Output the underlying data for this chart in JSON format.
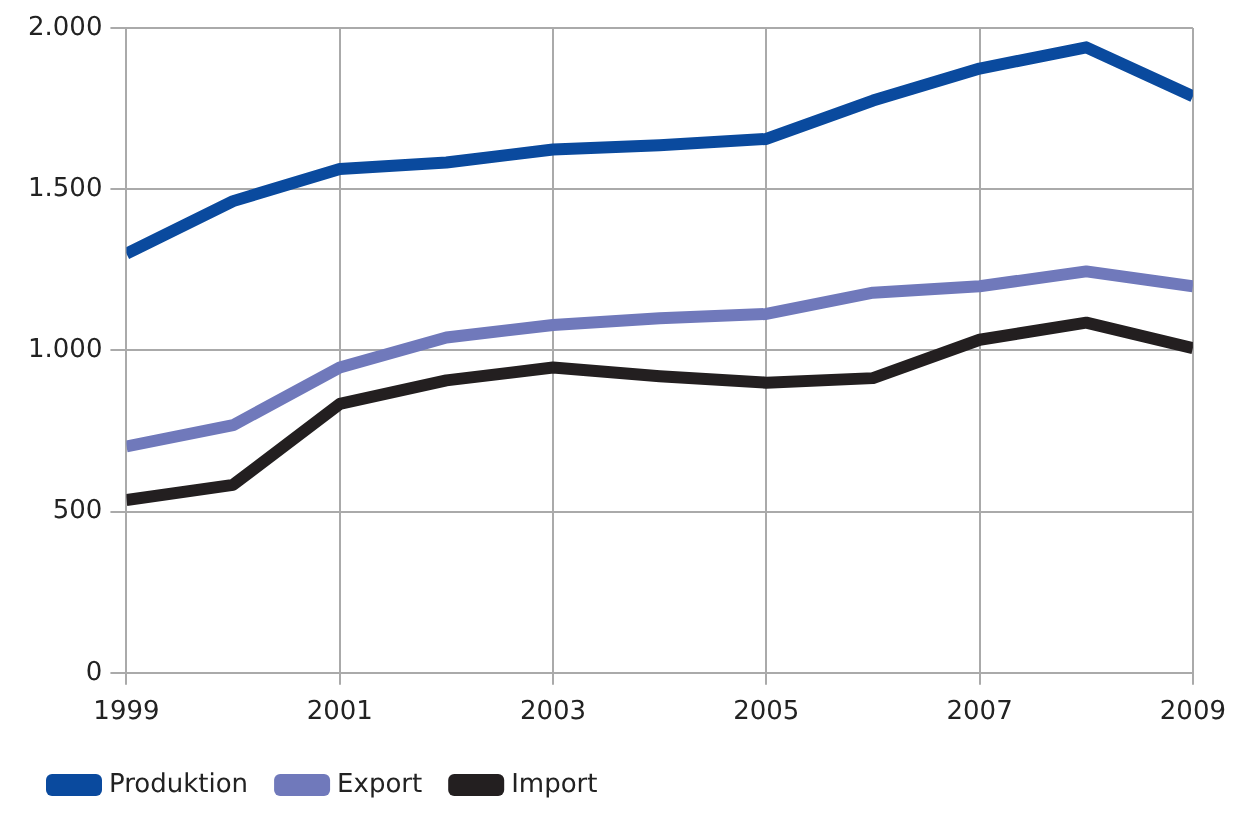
{
  "chart_data": {
    "type": "line",
    "x": [
      1999,
      2000,
      2001,
      2002,
      2003,
      2004,
      2005,
      2006,
      2007,
      2008,
      2009
    ],
    "xlim": [
      1999,
      2009
    ],
    "xticks": [
      1999,
      2001,
      2003,
      2005,
      2007,
      2009
    ],
    "ylim": [
      0,
      2000
    ],
    "yticks": [
      {
        "value": 0,
        "label": "0"
      },
      {
        "value": 500,
        "label": "500"
      },
      {
        "value": 1000,
        "label": "1.000"
      },
      {
        "value": 1500,
        "label": "1.500"
      },
      {
        "value": 2000,
        "label": "2.000"
      }
    ],
    "grid": true,
    "legend": "bottom left",
    "marker": "none",
    "line_style": "solid",
    "series": [
      {
        "name": "Produktion",
        "color": "#0a4a9e",
        "values": [
          1300,
          1463,
          1563,
          1583,
          1623,
          1636,
          1656,
          1775,
          1874,
          1940,
          1788
        ]
      },
      {
        "name": "Export",
        "color": "#7079bb",
        "values": [
          702,
          768,
          947,
          1040,
          1079,
          1100,
          1113,
          1179,
          1199,
          1245,
          1199
        ]
      },
      {
        "name": "Import",
        "color": "#231f20",
        "values": [
          536,
          583,
          834,
          907,
          947,
          920,
          900,
          914,
          1033,
          1086,
          1007
        ]
      }
    ]
  }
}
